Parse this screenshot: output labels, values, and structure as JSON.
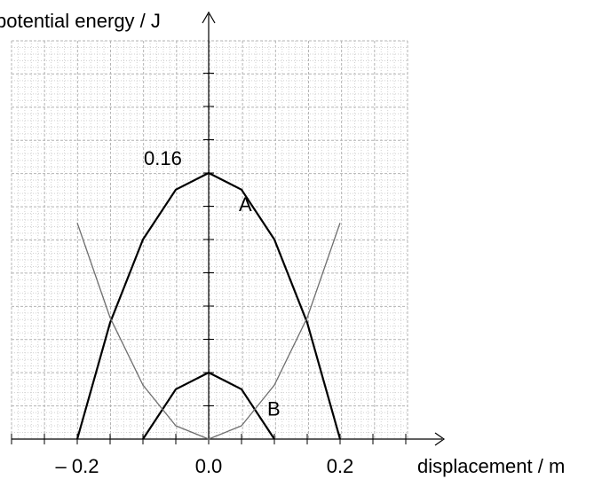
{
  "chart_data": {
    "type": "line",
    "xlabel": "displacement / m",
    "ylabel": "potential energy / J",
    "xlim": [
      -0.3,
      0.3
    ],
    "ylim": [
      0,
      0.2
    ],
    "x_ticks": [
      {
        "value": -0.2,
        "label": "– 0.2"
      },
      {
        "value": 0.0,
        "label": "0.0"
      },
      {
        "value": 0.2,
        "label": "0.2"
      }
    ],
    "grid": true,
    "annotations": [
      {
        "text": "0.16",
        "x": 0.0,
        "y": 0.16
      },
      {
        "text": "A",
        "x": 0.05,
        "y": 0.15
      },
      {
        "text": "B",
        "x": 0.1,
        "y": 0.011
      }
    ],
    "series": [
      {
        "name": "A",
        "color": "#000000",
        "x": [
          -0.2,
          -0.15,
          -0.1,
          -0.05,
          0.0,
          0.05,
          0.1,
          0.15,
          0.2
        ],
        "y": [
          0.0,
          0.07,
          0.12,
          0.15,
          0.16,
          0.15,
          0.12,
          0.07,
          0.0
        ]
      },
      {
        "name": "B",
        "color": "#000000",
        "x": [
          -0.1,
          -0.05,
          0.0,
          0.05,
          0.1
        ],
        "y": [
          0.0,
          0.03,
          0.04,
          0.03,
          0.0
        ]
      },
      {
        "name": "",
        "color": "#6e6e6e",
        "x": [
          -0.2,
          -0.15,
          -0.1,
          -0.05,
          0.0,
          0.05,
          0.1,
          0.15,
          0.2
        ],
        "y": [
          0.13,
          0.073,
          0.0325,
          0.008,
          0.0,
          0.008,
          0.0325,
          0.073,
          0.13
        ]
      }
    ]
  }
}
